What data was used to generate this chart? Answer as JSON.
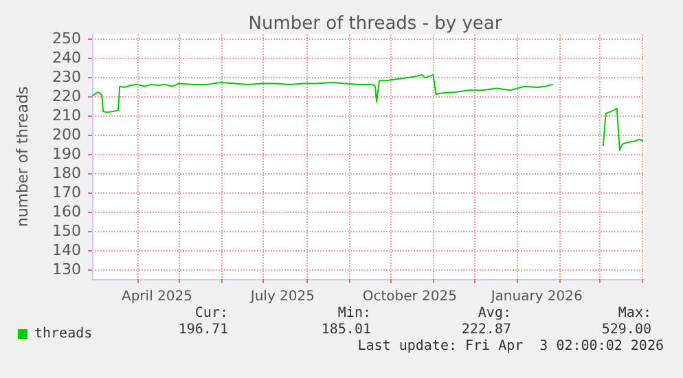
{
  "chart_data": {
    "type": "line",
    "title": "Number of threads - by year",
    "ylabel": "number of threads",
    "x": [
      "2025-02-27",
      "2025-03-02",
      "2025-03-04",
      "2025-03-06",
      "2025-03-07",
      "2025-03-10",
      "2025-03-14",
      "2025-03-18",
      "2025-03-19",
      "2025-03-22",
      "2025-03-27",
      "2025-04-01",
      "2025-04-06",
      "2025-04-11",
      "2025-04-16",
      "2025-04-21",
      "2025-04-26",
      "2025-05-01",
      "2025-05-11",
      "2025-05-21",
      "2025-05-31",
      "2025-06-10",
      "2025-06-20",
      "2025-06-30",
      "2025-07-10",
      "2025-07-20",
      "2025-07-30",
      "2025-08-09",
      "2025-08-19",
      "2025-08-29",
      "2025-09-08",
      "2025-09-18",
      "2025-09-20",
      "2025-09-21",
      "2025-09-23",
      "2025-09-28",
      "2025-10-08",
      "2025-10-18",
      "2025-10-24",
      "2025-10-26",
      "2025-11-01",
      "2025-11-03",
      "2025-11-07",
      "2025-11-17",
      "2025-11-27",
      "2025-12-07",
      "2025-12-17",
      "2025-12-27",
      "2026-01-01",
      "2026-01-06",
      "2026-01-16",
      "2026-01-21",
      "2026-01-27",
      "2026-02-10",
      "2026-03-04",
      "2026-03-06",
      "2026-03-10",
      "2026-03-14",
      "2026-03-16",
      "2026-03-18",
      "2026-03-22",
      "2026-03-27",
      "2026-03-30",
      "2026-04-02"
    ],
    "series": [
      {
        "name": "threads",
        "color": "#00cc00",
        "values": [
          220,
          221.5,
          222,
          220.5,
          212,
          211.5,
          212,
          212.5,
          225,
          224.5,
          225.5,
          226,
          225,
          226,
          225.5,
          226,
          225,
          226.5,
          226,
          226,
          227,
          226.5,
          226,
          226.5,
          226.5,
          226,
          226.5,
          226.5,
          227,
          226.5,
          226,
          226,
          225,
          217,
          228,
          228,
          229,
          230,
          231,
          229.5,
          231,
          221,
          221.5,
          222,
          223,
          223,
          224,
          223,
          224,
          225,
          224.5,
          225,
          226,
          null,
          194,
          211,
          212,
          213.5,
          192,
          195,
          196,
          196.5,
          197.5,
          196.7
        ]
      }
    ],
    "xlim": [
      "2025-02-27",
      "2026-04-03"
    ],
    "xticks": [
      {
        "value": "2025-04-01",
        "label": null
      },
      {
        "value": "2025-04-15",
        "label": "April 2025"
      },
      {
        "value": "2025-05-01",
        "label": null
      },
      {
        "value": "2025-06-01",
        "label": null
      },
      {
        "value": "2025-07-01",
        "label": null
      },
      {
        "value": "2025-07-15",
        "label": "July 2025"
      },
      {
        "value": "2025-08-01",
        "label": null
      },
      {
        "value": "2025-09-01",
        "label": null
      },
      {
        "value": "2025-10-01",
        "label": null
      },
      {
        "value": "2025-10-15",
        "label": "October 2025"
      },
      {
        "value": "2025-11-01",
        "label": null
      },
      {
        "value": "2025-12-01",
        "label": null
      },
      {
        "value": "2026-01-01",
        "label": null
      },
      {
        "value": "2026-01-15",
        "label": "January 2026"
      },
      {
        "value": "2026-02-01",
        "label": null
      },
      {
        "value": "2026-03-01",
        "label": null
      },
      {
        "value": "2026-04-01",
        "label": null
      }
    ],
    "ylim": [
      125,
      252
    ],
    "yticks": [
      130,
      140,
      150,
      160,
      170,
      180,
      190,
      200,
      210,
      220,
      230,
      240,
      250
    ],
    "grid": true,
    "legend": "bottom left",
    "marker": "none",
    "line_style": "solid",
    "annotations": [
      "Cur:",
      "Min:",
      "Avg:",
      "Max:",
      "196.71",
      "185.01",
      "222.87",
      "529.00",
      "Last update: Fri Apr  3 02:00:02 2026"
    ]
  }
}
